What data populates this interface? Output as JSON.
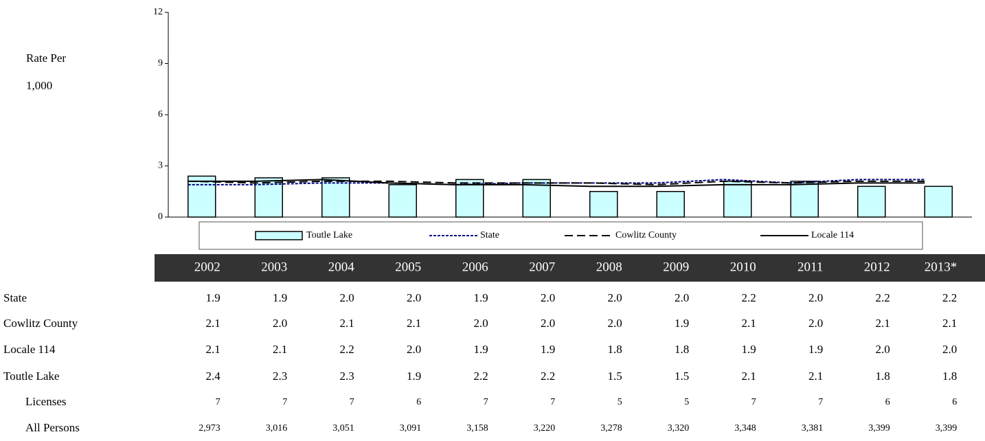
{
  "chart_data": {
    "type": "bar",
    "y_label_lines": [
      "Rate Per",
      "1,000"
    ],
    "categories": [
      "2002",
      "2003",
      "2004",
      "2005",
      "2006",
      "2007",
      "2008",
      "2009",
      "2010",
      "2011",
      "2012",
      "2013*"
    ],
    "series": [
      {
        "name": "Toutle Lake",
        "type": "bar",
        "color": "#ccffff",
        "values": [
          2.4,
          2.3,
          2.3,
          1.9,
          2.2,
          2.2,
          1.5,
          1.5,
          2.1,
          2.1,
          1.8,
          1.8
        ],
        "value_labels": [
          "2.4",
          "2.3",
          "2.3",
          "1.9",
          "2.2",
          "2.2",
          "1.5",
          "1.5",
          "2.1",
          "2.1",
          "1.8",
          "1.8"
        ]
      },
      {
        "name": "State",
        "type": "line",
        "color": "#000080",
        "dash": "4,2",
        "values": [
          1.9,
          1.9,
          2.0,
          2.0,
          1.9,
          2.0,
          2.0,
          2.0,
          2.2,
          2.0,
          2.2,
          2.2
        ],
        "value_labels": [
          "1.9",
          "1.9",
          "2.0",
          "2.0",
          "1.9",
          "2.0",
          "2.0",
          "2.0",
          "2.2",
          "2.0",
          "2.2",
          "2.2"
        ]
      },
      {
        "name": "Cowlitz County",
        "type": "line",
        "color": "#000000",
        "dash": "12,6",
        "values": [
          2.1,
          2.0,
          2.1,
          2.1,
          2.0,
          2.0,
          2.0,
          1.9,
          2.1,
          2.0,
          2.1,
          2.1
        ],
        "value_labels": [
          "2.1",
          "2.0",
          "2.1",
          "2.1",
          "2.0",
          "2.0",
          "2.0",
          "1.9",
          "2.1",
          "2.0",
          "2.1",
          "2.1"
        ]
      },
      {
        "name": "Locale 114",
        "type": "line",
        "color": "#000000",
        "dash": "none",
        "values": [
          2.1,
          2.1,
          2.2,
          2.0,
          1.9,
          1.9,
          1.8,
          1.8,
          1.9,
          1.9,
          2.0,
          2.0
        ],
        "value_labels": [
          "2.1",
          "2.1",
          "2.2",
          "2.0",
          "1.9",
          "1.9",
          "1.8",
          "1.8",
          "1.9",
          "1.9",
          "2.0",
          "2.0"
        ]
      }
    ],
    "ylim": [
      0,
      12
    ],
    "yticks": [
      0,
      3,
      6,
      9,
      12
    ],
    "grid": false,
    "table_rows": [
      {
        "label": "Licenses",
        "values": [
          "7",
          "7",
          "7",
          "6",
          "7",
          "7",
          "5",
          "5",
          "7",
          "7",
          "6",
          "6"
        ]
      },
      {
        "label": "All Persons",
        "values": [
          "2,973",
          "3,016",
          "3,051",
          "3,091",
          "3,158",
          "3,220",
          "3,278",
          "3,320",
          "3,348",
          "3,381",
          "3,399",
          "3,399"
        ]
      }
    ]
  }
}
